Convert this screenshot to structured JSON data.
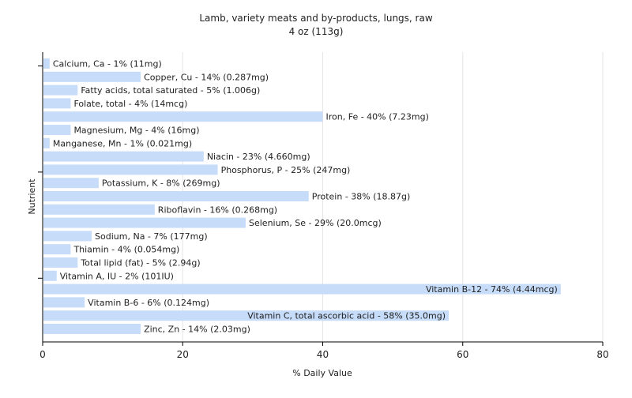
{
  "chart_data": {
    "type": "bar",
    "orientation": "horizontal",
    "title": "Lamb, variety meats and by-products, lungs, raw",
    "subtitle": "4 oz (113g)",
    "xlabel": "% Daily Value",
    "ylabel": "Nutrient",
    "xlim": [
      0,
      80
    ],
    "xticks": [
      "0",
      "20",
      "40",
      "60",
      "80"
    ],
    "grid": true,
    "legend": "none",
    "bar_color": "#c6dcf9",
    "categories": [
      "Calcium, Ca",
      "Copper, Cu",
      "Fatty acids, total saturated",
      "Folate, total",
      "Iron, Fe",
      "Magnesium, Mg",
      "Manganese, Mn",
      "Niacin",
      "Phosphorus, P",
      "Potassium, K",
      "Protein",
      "Riboflavin",
      "Selenium, Se",
      "Sodium, Na",
      "Thiamin",
      "Total lipid (fat)",
      "Vitamin A, IU",
      "Vitamin B-12",
      "Vitamin B-6",
      "Vitamin C, total ascorbic acid",
      "Zinc, Zn"
    ],
    "values": [
      1,
      14,
      5,
      4,
      40,
      4,
      1,
      23,
      25,
      8,
      38,
      16,
      29,
      7,
      4,
      5,
      2,
      74,
      6,
      58,
      14
    ],
    "labels": [
      "Calcium, Ca - 1% (11mg)",
      "Copper, Cu - 14% (0.287mg)",
      "Fatty acids, total saturated - 5% (1.006g)",
      "Folate, total - 4% (14mcg)",
      "Iron, Fe - 40% (7.23mg)",
      "Magnesium, Mg - 4% (16mg)",
      "Manganese, Mn - 1% (0.021mg)",
      "Niacin - 23% (4.660mg)",
      "Phosphorus, P - 25% (247mg)",
      "Potassium, K - 8% (269mg)",
      "Protein - 38% (18.87g)",
      "Riboflavin - 16% (0.268mg)",
      "Selenium, Se - 29% (20.0mcg)",
      "Sodium, Na - 7% (177mg)",
      "Thiamin - 4% (0.054mg)",
      "Total lipid (fat) - 5% (2.94g)",
      "Vitamin A, IU - 2% (101IU)",
      "Vitamin B-12 - 74% (4.44mcg)",
      "Vitamin B-6 - 6% (0.124mg)",
      "Vitamin C, total ascorbic acid - 58% (35.0mg)",
      "Zinc, Zn - 14% (2.03mg)"
    ]
  }
}
